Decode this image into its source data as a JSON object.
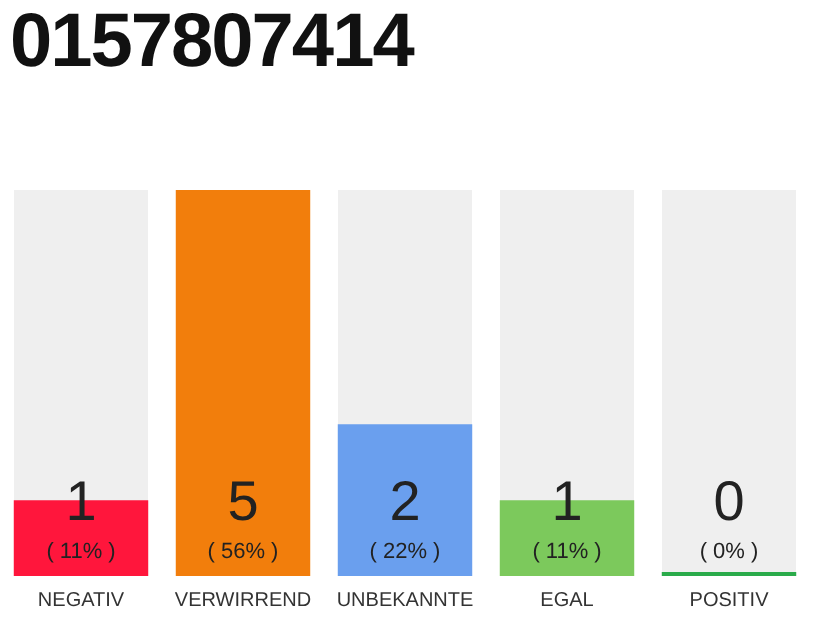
{
  "chart_data": {
    "type": "bar",
    "title": "0157807414",
    "categories": [
      "NEGATIV",
      "VERWIRREND",
      "UNBEKANNTE",
      "EGAL",
      "POSITIV"
    ],
    "values": [
      11,
      56,
      22,
      11,
      0
    ],
    "colors": [
      "#ff163c",
      "#f27e0c",
      "#6a9fee",
      "#7cc95c",
      "#2aab4a"
    ],
    "value_labels": [
      "1\n( 11% )",
      "5\n( 56% )",
      "2\n( 22% )",
      "1\n( 11% )",
      "0\n( 0% )"
    ],
    "tick_labels": "x",
    "grid": false,
    "legend": false
  }
}
